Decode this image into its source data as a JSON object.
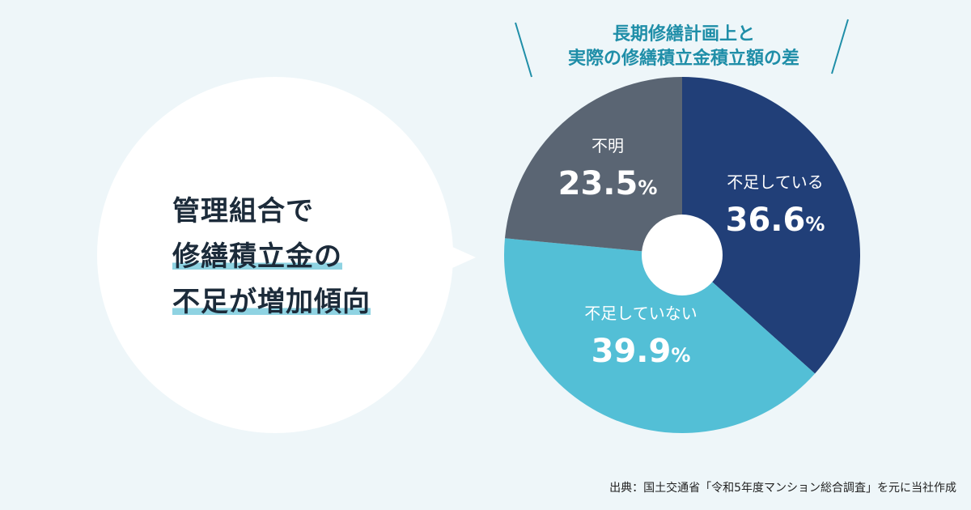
{
  "headline": {
    "line1": "管理組合で",
    "line2": "修繕積立金の",
    "line3": "不足が増加傾向"
  },
  "chart_data": {
    "type": "pie",
    "title_line1": "長期修繕計画上と",
    "title_line2": "実際の修繕積立金積立額の差",
    "unit": "%",
    "slices": [
      {
        "label": "不足している",
        "value": 36.6,
        "display": "36.6",
        "color": "#213f78"
      },
      {
        "label": "不足していない",
        "value": 39.9,
        "display": "39.9",
        "color": "#53bfd6"
      },
      {
        "label": "不明",
        "value": 23.5,
        "display": "23.5",
        "color": "#5a6573"
      }
    ]
  },
  "source": "出典：国土交通省「令和5年度マンション総合調査」を元に当社作成"
}
